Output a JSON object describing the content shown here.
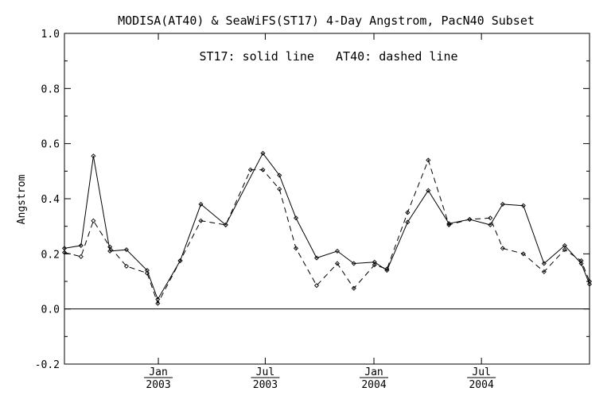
{
  "chart_data": {
    "type": "line",
    "title": "MODISA(AT40) & SeaWiFS(ST17) 4-Day Angstrom, PacN40 Subset",
    "annotation": "ST17: solid line   AT40: dashed line",
    "ylabel": "Angstrom",
    "xlabel": "",
    "ylim": [
      -0.2,
      1.0
    ],
    "xlim": [
      "2002-07-26",
      "2004-12-31"
    ],
    "yticks": [
      "-0.2",
      "0.0",
      "0.2",
      "0.4",
      "0.6",
      "0.8",
      "1.0"
    ],
    "xticks": [
      {
        "date": "2003-01-01",
        "month": "Jan",
        "year": "2003"
      },
      {
        "date": "2003-07-01",
        "month": "Jul",
        "year": "2003"
      },
      {
        "date": "2004-01-01",
        "month": "Jan",
        "year": "2004"
      },
      {
        "date": "2004-07-01",
        "month": "Jul",
        "year": "2004"
      }
    ],
    "reference_line": 0.0,
    "grid": false,
    "colors": {
      "line": "#000000",
      "background": "#ffffff"
    },
    "series": [
      {
        "name": "ST17",
        "style": "solid",
        "points": [
          [
            "2002-07-26",
            0.22
          ],
          [
            "2002-08-23",
            0.23
          ],
          [
            "2002-09-13",
            0.555
          ],
          [
            "2002-10-11",
            0.21
          ],
          [
            "2002-11-08",
            0.215
          ],
          [
            "2002-12-13",
            0.14
          ],
          [
            "2002-12-31",
            0.035
          ],
          [
            "2003-02-07",
            0.175
          ],
          [
            "2003-03-14",
            0.38
          ],
          [
            "2003-04-25",
            0.305
          ],
          [
            "2003-06-27",
            0.565
          ],
          [
            "2003-07-25",
            0.485
          ],
          [
            "2003-08-22",
            0.33
          ],
          [
            "2003-09-26",
            0.185
          ],
          [
            "2003-10-31",
            0.21
          ],
          [
            "2003-11-28",
            0.165
          ],
          [
            "2004-01-02",
            0.17
          ],
          [
            "2004-01-23",
            0.14
          ],
          [
            "2004-02-27",
            0.315
          ],
          [
            "2004-04-02",
            0.43
          ],
          [
            "2004-05-07",
            0.31
          ],
          [
            "2004-06-11",
            0.325
          ],
          [
            "2004-07-16",
            0.305
          ],
          [
            "2004-08-06",
            0.38
          ],
          [
            "2004-09-10",
            0.375
          ],
          [
            "2004-10-15",
            0.165
          ],
          [
            "2004-11-19",
            0.23
          ],
          [
            "2004-12-17",
            0.165
          ],
          [
            "2004-12-31",
            0.09
          ]
        ]
      },
      {
        "name": "AT40",
        "style": "dashed",
        "points": [
          [
            "2002-07-26",
            0.205
          ],
          [
            "2002-08-23",
            0.19
          ],
          [
            "2002-09-13",
            0.32
          ],
          [
            "2002-10-11",
            0.225
          ],
          [
            "2002-11-08",
            0.155
          ],
          [
            "2002-12-13",
            0.13
          ],
          [
            "2002-12-31",
            0.02
          ],
          [
            "2003-02-07",
            0.175
          ],
          [
            "2003-03-14",
            0.32
          ],
          [
            "2003-04-25",
            0.305
          ],
          [
            "2003-06-06",
            0.505
          ],
          [
            "2003-06-27",
            0.505
          ],
          [
            "2003-07-25",
            0.435
          ],
          [
            "2003-08-22",
            0.22
          ],
          [
            "2003-09-26",
            0.085
          ],
          [
            "2003-10-31",
            0.165
          ],
          [
            "2003-11-28",
            0.075
          ],
          [
            "2004-01-02",
            0.16
          ],
          [
            "2004-01-23",
            0.145
          ],
          [
            "2004-02-27",
            0.35
          ],
          [
            "2004-04-02",
            0.54
          ],
          [
            "2004-05-07",
            0.305
          ],
          [
            "2004-06-11",
            0.325
          ],
          [
            "2004-07-16",
            0.33
          ],
          [
            "2004-08-06",
            0.22
          ],
          [
            "2004-09-10",
            0.2
          ],
          [
            "2004-10-15",
            0.135
          ],
          [
            "2004-11-19",
            0.215
          ],
          [
            "2004-12-17",
            0.175
          ],
          [
            "2004-12-31",
            0.1
          ]
        ]
      }
    ]
  }
}
